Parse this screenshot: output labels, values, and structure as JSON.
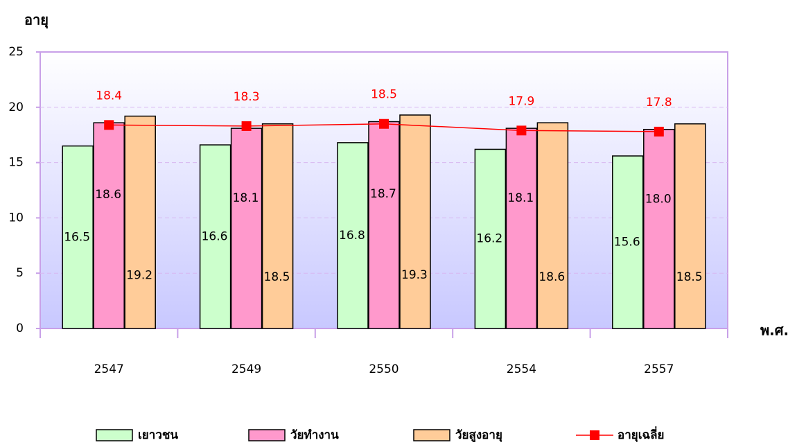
{
  "chart_data": {
    "type": "bar",
    "y_label": "อายุ",
    "x_label": "พ.ศ.",
    "categories": [
      "2547",
      "2549",
      "2550",
      "2554",
      "2557"
    ],
    "series": [
      {
        "name": "เยาวชน",
        "color": "#ccffcc",
        "values": [
          16.5,
          16.6,
          16.8,
          16.2,
          15.6
        ]
      },
      {
        "name": "วัยทำงาน",
        "color": "#ff99cc",
        "values": [
          18.6,
          18.1,
          18.7,
          18.1,
          18.0
        ],
        "value_labels": [
          "18.6",
          "18.1",
          "18.7",
          "18.1",
          "18.0"
        ]
      },
      {
        "name": "วัยสูงอายุ",
        "color": "#ffcc99",
        "values": [
          19.2,
          18.5,
          19.3,
          18.6,
          18.5
        ]
      },
      {
        "name": "อายุเฉลี่ย",
        "color": "#ff0000",
        "type": "line",
        "values": [
          18.4,
          18.3,
          18.5,
          17.9,
          17.8
        ]
      }
    ],
    "ylim": [
      0,
      25
    ],
    "yticks": [
      0,
      5,
      10,
      15,
      20,
      25
    ],
    "grid": true
  }
}
